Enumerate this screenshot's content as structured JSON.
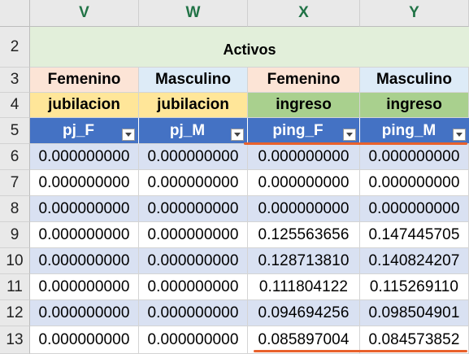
{
  "columns": [
    "V",
    "W",
    "X",
    "Y"
  ],
  "rows": [
    "2",
    "3",
    "4",
    "5",
    "6",
    "7",
    "8",
    "9",
    "10",
    "11",
    "12",
    "13"
  ],
  "title": "Activos",
  "gender": [
    "Femenino",
    "Masculino",
    "Femenino",
    "Masculino"
  ],
  "category": [
    "jubilacion",
    "jubilacion",
    "ingreso",
    "ingreso"
  ],
  "headers": [
    "pj_F",
    "pj_M",
    "ping_F",
    "ping_M"
  ],
  "icons": {
    "filter": "dropdown-arrow-icon"
  },
  "colors": {
    "title_bg": "#e2efda",
    "peach": "#fce4d6",
    "light_blue": "#ddebf7",
    "yellow": "#ffe699",
    "green": "#a9d08e",
    "header_blue": "#4472c4",
    "band": "#d9e1f2",
    "underline": "#e8612c",
    "column_letter": "#217346"
  },
  "data": [
    [
      "0.000000000",
      "0.000000000",
      "0.000000000",
      "0.000000000"
    ],
    [
      "0.000000000",
      "0.000000000",
      "0.000000000",
      "0.000000000"
    ],
    [
      "0.000000000",
      "0.000000000",
      "0.000000000",
      "0.000000000"
    ],
    [
      "0.000000000",
      "0.000000000",
      "0.125563656",
      "0.147445705"
    ],
    [
      "0.000000000",
      "0.000000000",
      "0.128713810",
      "0.140824207"
    ],
    [
      "0.000000000",
      "0.000000000",
      "0.111804122",
      "0.115269110"
    ],
    [
      "0.000000000",
      "0.000000000",
      "0.094694256",
      "0.098504901"
    ],
    [
      "0.000000000",
      "0.000000000",
      "0.085897004",
      "0.084573852"
    ]
  ]
}
